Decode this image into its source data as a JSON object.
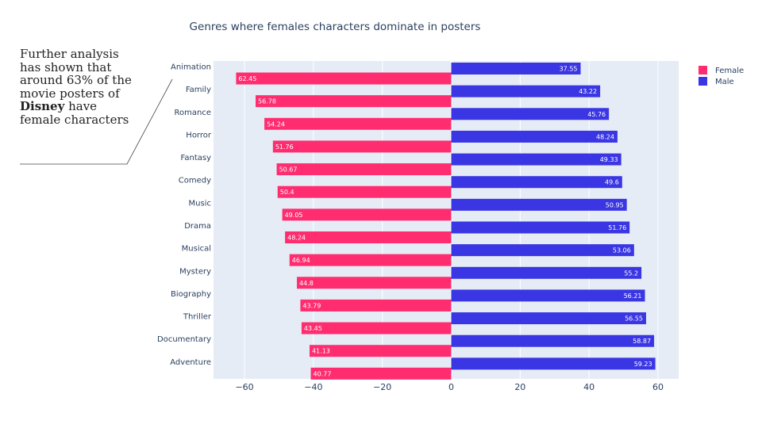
{
  "annotation": {
    "text_before": "Further analysis has shown that around 63% of the movie posters of",
    "bold": "Disney",
    "text_after": "have female characters"
  },
  "chart_data": {
    "type": "bar",
    "orientation": "horizontal",
    "title": "Genres where females characters dominate in posters",
    "categories": [
      "Animation",
      "Family",
      "Romance",
      "Horror",
      "Fantasy",
      "Comedy",
      "Music",
      "Drama",
      "Musical",
      "Mystery",
      "Biography",
      "Thriller",
      "Documentary",
      "Adventure"
    ],
    "series": [
      {
        "name": "Female",
        "color": "#ff2d6f",
        "values": [
          -62.45,
          -56.78,
          -54.24,
          -51.76,
          -50.67,
          -50.4,
          -49.05,
          -48.24,
          -46.94,
          -44.8,
          -43.79,
          -43.45,
          -41.13,
          -40.77
        ],
        "labels": [
          "62.45",
          "56.78",
          "54.24",
          "51.76",
          "50.67",
          "50.4",
          "49.05",
          "48.24",
          "46.94",
          "44.8",
          "43.79",
          "43.45",
          "41.13",
          "40.77"
        ]
      },
      {
        "name": "Male",
        "color": "#3a36e3",
        "values": [
          37.55,
          43.22,
          45.76,
          48.24,
          49.33,
          49.6,
          50.95,
          51.76,
          53.06,
          55.2,
          56.21,
          56.55,
          58.87,
          59.23
        ],
        "labels": [
          "37.55",
          "43.22",
          "45.76",
          "48.24",
          "49.33",
          "49.6",
          "50.95",
          "51.76",
          "53.06",
          "55.2",
          "56.21",
          "56.55",
          "58.87",
          "59.23"
        ]
      }
    ],
    "x_ticks": [
      -60,
      -40,
      -20,
      0,
      20,
      40,
      60
    ],
    "x_tick_labels": [
      "−60",
      "−40",
      "−20",
      "0",
      "20",
      "40",
      "60"
    ],
    "xlim": [
      -69,
      66
    ],
    "grid": true,
    "legend_position": "top-right",
    "colors": {
      "plot_bg": "#e5ecf6",
      "grid": "#ffffff",
      "text": "#2a3f5f"
    }
  }
}
